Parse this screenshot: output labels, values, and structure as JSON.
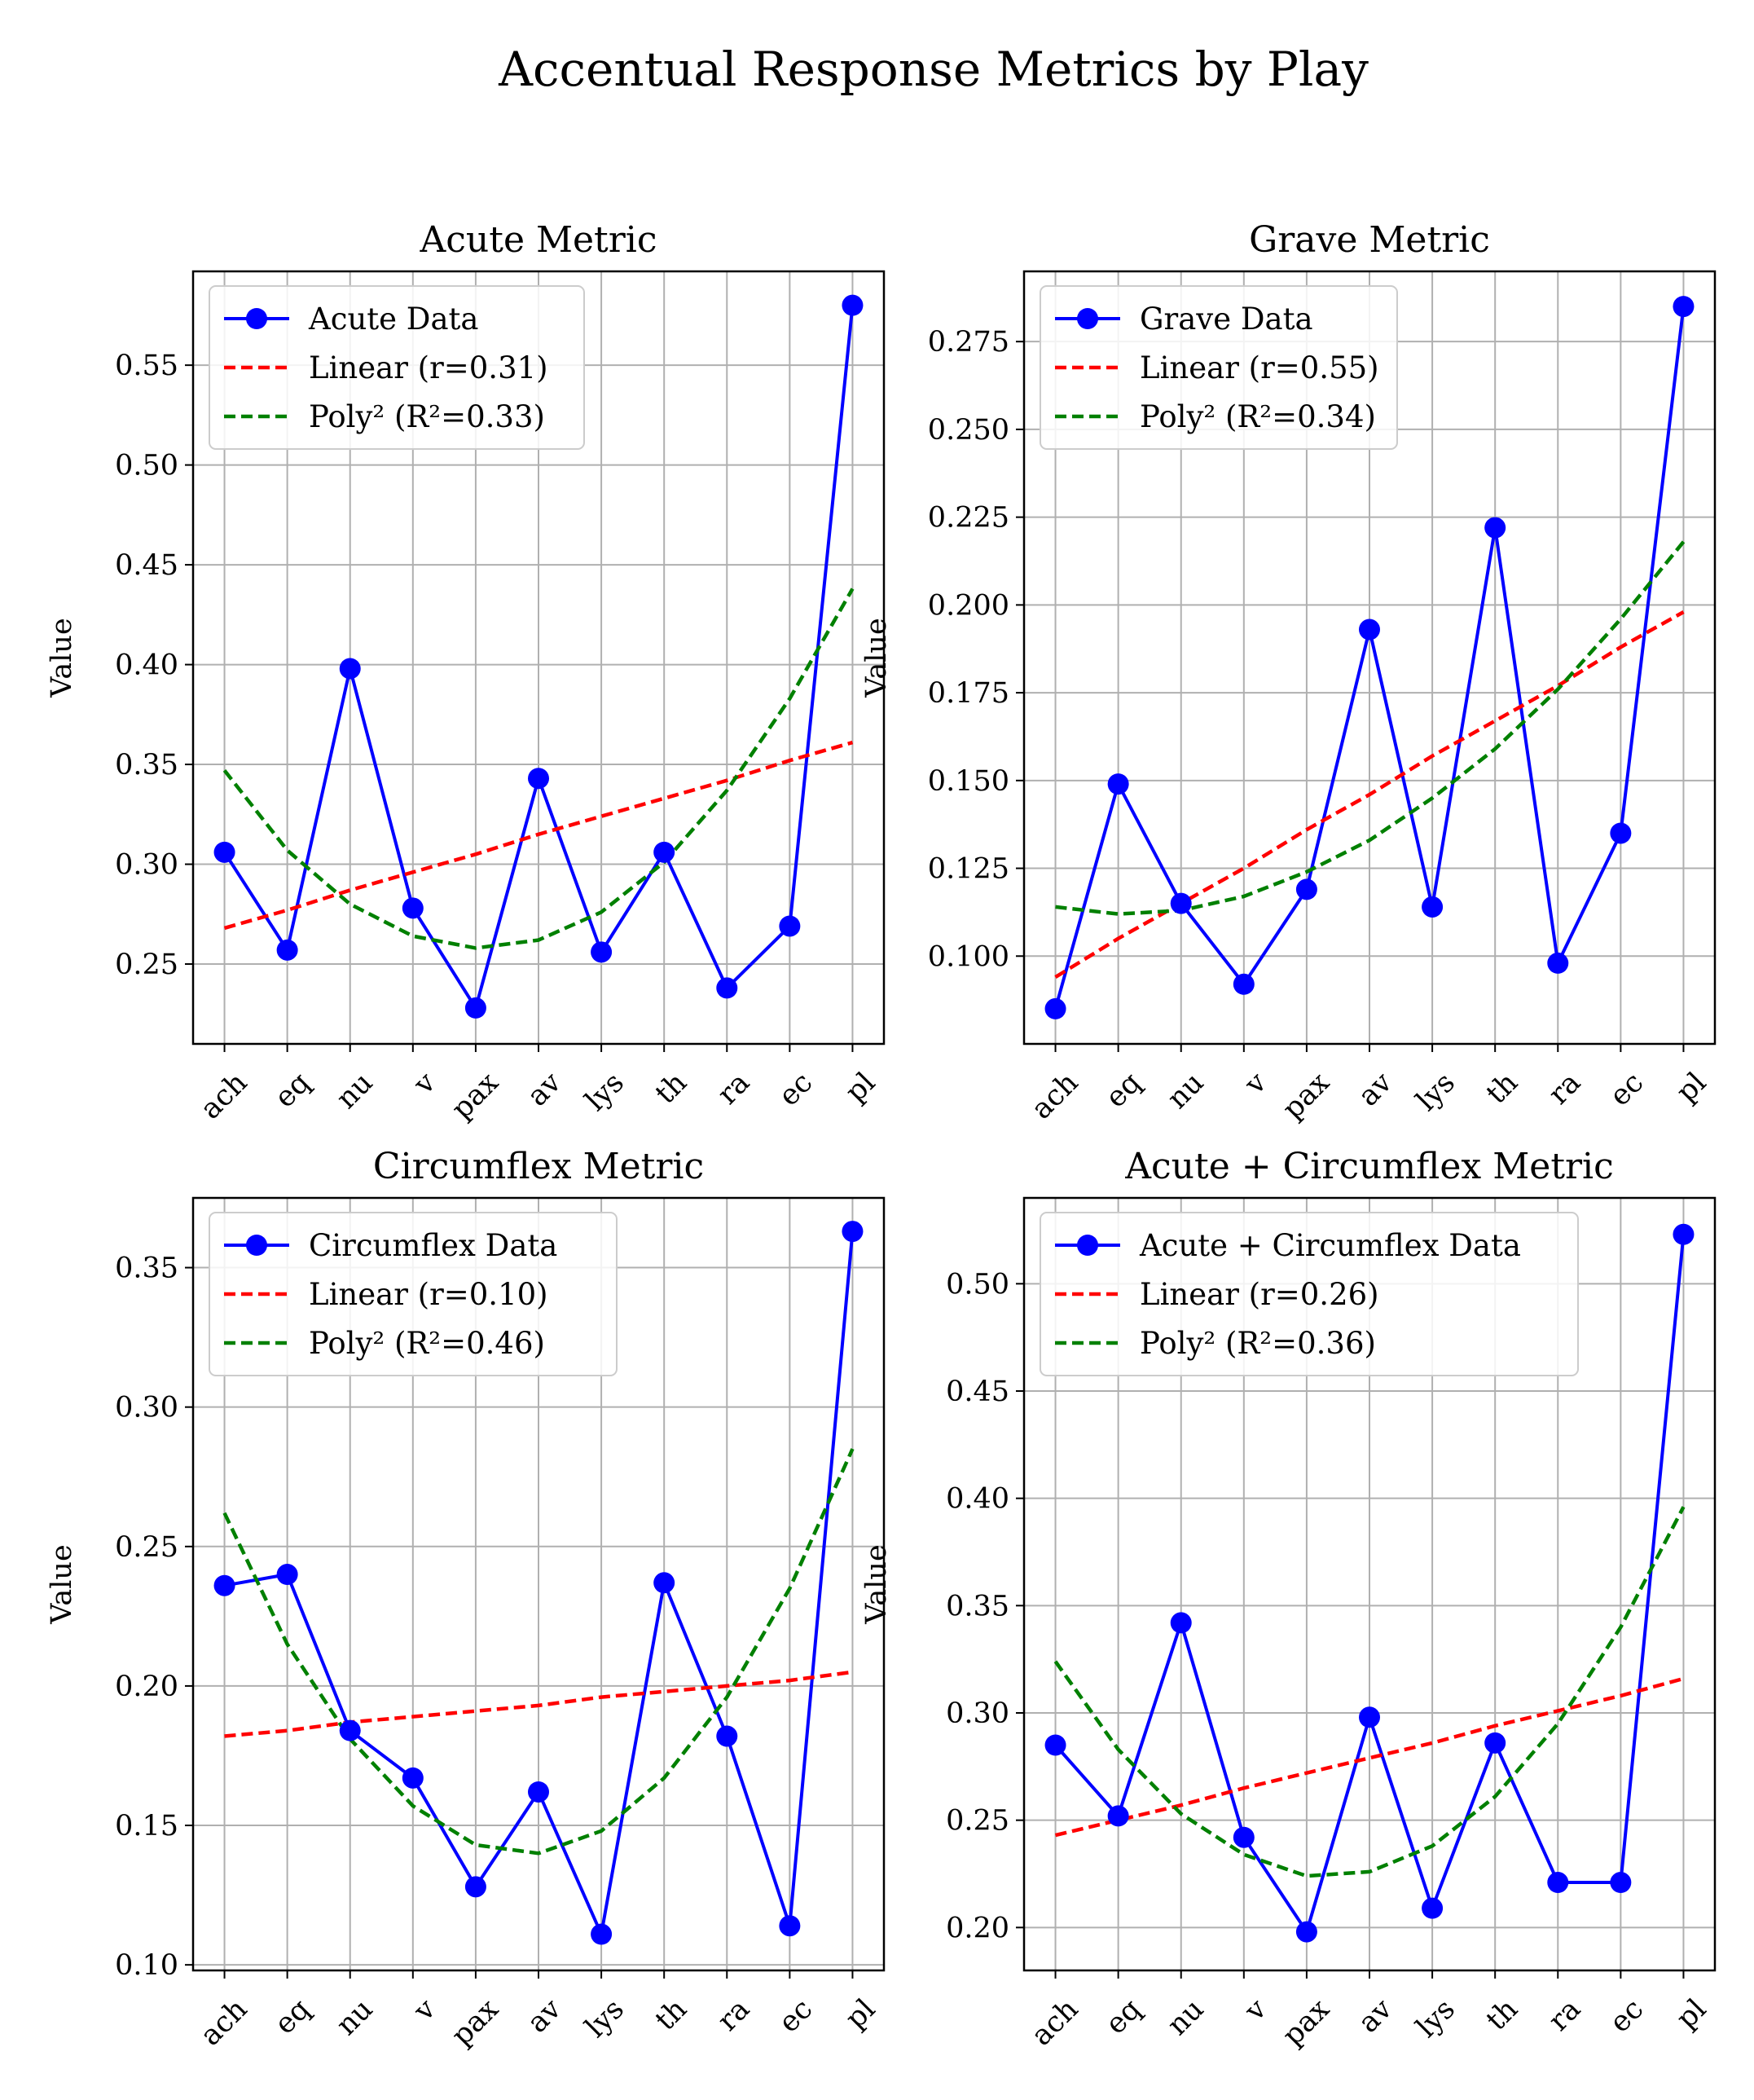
{
  "figure": {
    "title": "Accentual Response Metrics by Play"
  },
  "chart_data": [
    {
      "type": "line",
      "title": "Acute Metric",
      "xlabel": "",
      "ylabel": "Value",
      "categories": [
        "ach",
        "eq",
        "nu",
        "v",
        "pax",
        "av",
        "lys",
        "th",
        "ra",
        "ec",
        "pl"
      ],
      "ylim": [
        0.21,
        0.597
      ],
      "yticks": [
        0.25,
        0.3,
        0.35,
        0.4,
        0.45,
        0.5,
        0.55
      ],
      "ytick_labels": [
        "0.25",
        "0.30",
        "0.35",
        "0.40",
        "0.45",
        "0.50",
        "0.55"
      ],
      "grid": true,
      "legend_position": "top-left",
      "series": [
        {
          "name": "Acute Data",
          "style": "line-marker",
          "color": "#0000ff",
          "values": [
            0.306,
            0.257,
            0.398,
            0.278,
            0.228,
            0.343,
            0.256,
            0.306,
            0.238,
            0.269,
            0.58
          ]
        },
        {
          "name": "Linear (r=0.31)",
          "style": "dashed",
          "color": "#ff0000",
          "values": [
            0.268,
            0.277,
            0.287,
            0.296,
            0.305,
            0.315,
            0.324,
            0.333,
            0.342,
            0.352,
            0.361
          ]
        },
        {
          "name": "Poly² (R²=0.33)",
          "style": "dashed",
          "color": "#008000",
          "values": [
            0.347,
            0.307,
            0.28,
            0.264,
            0.258,
            0.262,
            0.276,
            0.301,
            0.337,
            0.383,
            0.438
          ]
        }
      ]
    },
    {
      "type": "line",
      "title": "Grave Metric",
      "xlabel": "",
      "ylabel": "Value",
      "categories": [
        "ach",
        "eq",
        "nu",
        "v",
        "pax",
        "av",
        "lys",
        "th",
        "ra",
        "ec",
        "pl"
      ],
      "ylim": [
        0.075,
        0.295
      ],
      "yticks": [
        0.1,
        0.125,
        0.15,
        0.175,
        0.2,
        0.225,
        0.25,
        0.275
      ],
      "ytick_labels": [
        "0.100",
        "0.125",
        "0.150",
        "0.175",
        "0.200",
        "0.225",
        "0.250",
        "0.275"
      ],
      "grid": true,
      "legend_position": "top-left",
      "series": [
        {
          "name": "Grave Data",
          "style": "line-marker",
          "color": "#0000ff",
          "values": [
            0.085,
            0.149,
            0.115,
            0.092,
            0.119,
            0.193,
            0.114,
            0.222,
            0.098,
            0.135,
            0.285
          ]
        },
        {
          "name": "Linear (r=0.55)",
          "style": "dashed",
          "color": "#ff0000",
          "values": [
            0.094,
            0.105,
            0.115,
            0.125,
            0.136,
            0.146,
            0.157,
            0.167,
            0.177,
            0.188,
            0.198
          ]
        },
        {
          "name": "Poly² (R²=0.34)",
          "style": "dashed",
          "color": "#008000",
          "values": [
            0.114,
            0.112,
            0.113,
            0.117,
            0.124,
            0.133,
            0.145,
            0.159,
            0.176,
            0.196,
            0.218
          ]
        }
      ]
    },
    {
      "type": "line",
      "title": "Circumflex Metric",
      "xlabel": "",
      "ylabel": "Value",
      "categories": [
        "ach",
        "eq",
        "nu",
        "v",
        "pax",
        "av",
        "lys",
        "th",
        "ra",
        "ec",
        "pl"
      ],
      "ylim": [
        0.098,
        0.375
      ],
      "yticks": [
        0.1,
        0.15,
        0.2,
        0.25,
        0.3,
        0.35
      ],
      "ytick_labels": [
        "0.10",
        "0.15",
        "0.20",
        "0.25",
        "0.30",
        "0.35"
      ],
      "grid": true,
      "legend_position": "top-left",
      "series": [
        {
          "name": "Circumflex Data",
          "style": "line-marker",
          "color": "#0000ff",
          "values": [
            0.236,
            0.24,
            0.184,
            0.167,
            0.128,
            0.162,
            0.111,
            0.237,
            0.182,
            0.114,
            0.363
          ]
        },
        {
          "name": "Linear (r=0.10)",
          "style": "dashed",
          "color": "#ff0000",
          "values": [
            0.182,
            0.184,
            0.187,
            0.189,
            0.191,
            0.193,
            0.196,
            0.198,
            0.2,
            0.202,
            0.205
          ]
        },
        {
          "name": "Poly² (R²=0.46)",
          "style": "dashed",
          "color": "#008000",
          "values": [
            0.262,
            0.215,
            0.181,
            0.157,
            0.143,
            0.14,
            0.148,
            0.167,
            0.196,
            0.235,
            0.285
          ]
        }
      ]
    },
    {
      "type": "line",
      "title": "Acute + Circumflex Metric",
      "xlabel": "",
      "ylabel": "Value",
      "categories": [
        "ach",
        "eq",
        "nu",
        "v",
        "pax",
        "av",
        "lys",
        "th",
        "ra",
        "ec",
        "pl"
      ],
      "ylim": [
        0.18,
        0.54
      ],
      "yticks": [
        0.2,
        0.25,
        0.3,
        0.35,
        0.4,
        0.45,
        0.5
      ],
      "ytick_labels": [
        "0.20",
        "0.25",
        "0.30",
        "0.35",
        "0.40",
        "0.45",
        "0.50"
      ],
      "grid": true,
      "legend_position": "top-left",
      "series": [
        {
          "name": "Acute + Circumflex Data",
          "style": "line-marker",
          "color": "#0000ff",
          "values": [
            0.285,
            0.252,
            0.342,
            0.242,
            0.198,
            0.298,
            0.209,
            0.286,
            0.221,
            0.221,
            0.523
          ]
        },
        {
          "name": "Linear (r=0.26)",
          "style": "dashed",
          "color": "#ff0000",
          "values": [
            0.243,
            0.25,
            0.257,
            0.265,
            0.272,
            0.279,
            0.286,
            0.294,
            0.301,
            0.308,
            0.316
          ]
        },
        {
          "name": "Poly² (R²=0.36)",
          "style": "dashed",
          "color": "#008000",
          "values": [
            0.324,
            0.283,
            0.253,
            0.234,
            0.224,
            0.226,
            0.238,
            0.261,
            0.295,
            0.34,
            0.396
          ]
        }
      ]
    }
  ]
}
